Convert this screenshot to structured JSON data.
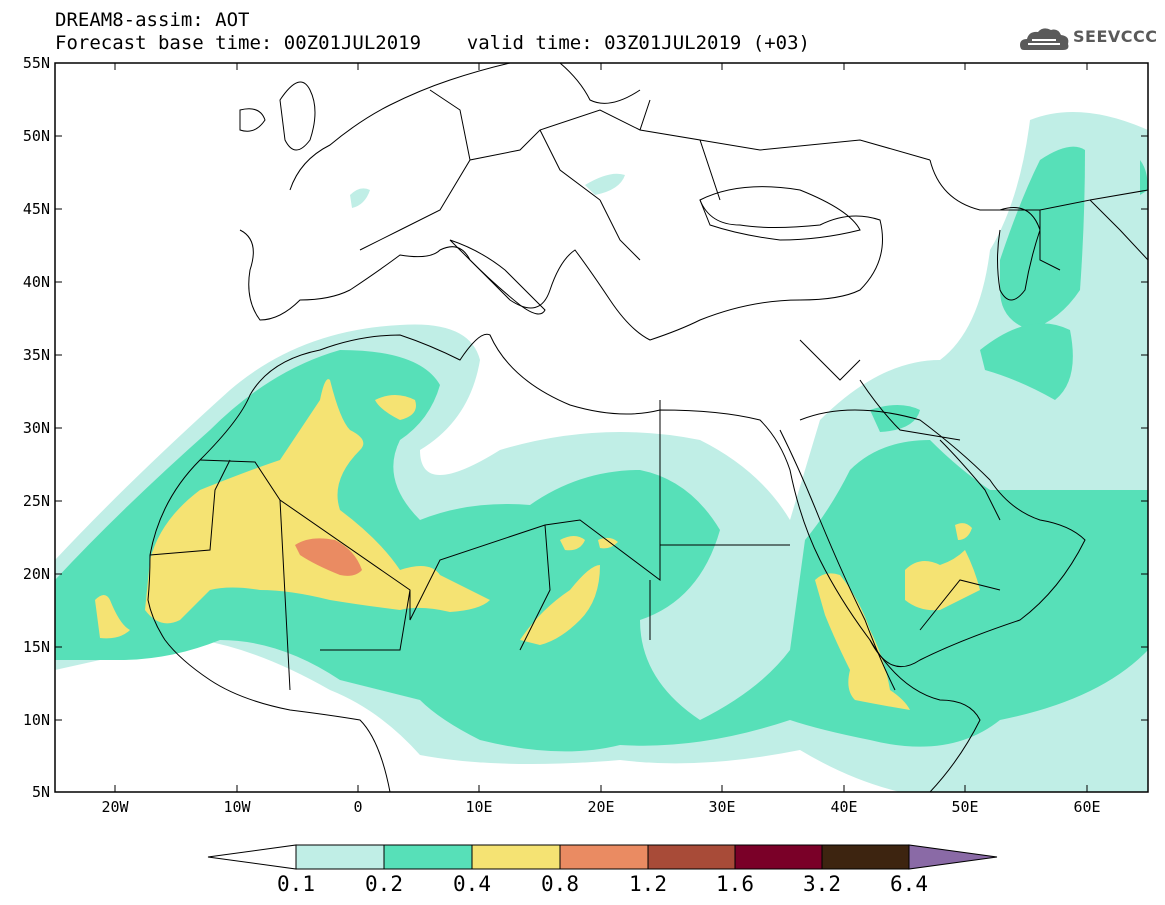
{
  "header": {
    "title_line1": "DREAM8-assim: AOT",
    "title_line2": "Forecast base time: 00Z01JUL2019    valid time: 03Z01JUL2019 (+03)"
  },
  "logo": {
    "text": "SEEVCCC",
    "icon": "cloud-logo-icon"
  },
  "map": {
    "lat_labels": [
      "55N",
      "50N",
      "45N",
      "40N",
      "35N",
      "30N",
      "25N",
      "20N",
      "15N",
      "10N",
      "5N"
    ],
    "lon_labels": [
      "20W",
      "10W",
      "0",
      "10E",
      "20E",
      "30E",
      "40E",
      "50E",
      "60E"
    ],
    "lat_range": [
      5,
      55
    ],
    "lon_range": [
      -25,
      65
    ]
  },
  "colorbar": {
    "labels": [
      "0.1",
      "0.2",
      "0.4",
      "0.8",
      "1.2",
      "1.6",
      "3.2",
      "6.4"
    ],
    "colors": [
      "#ffffff",
      "#c0eee6",
      "#57e0b8",
      "#f5e373",
      "#ea8b62",
      "#a84b38",
      "#7a0028",
      "#3d2410",
      "#8a6aa6"
    ]
  }
}
